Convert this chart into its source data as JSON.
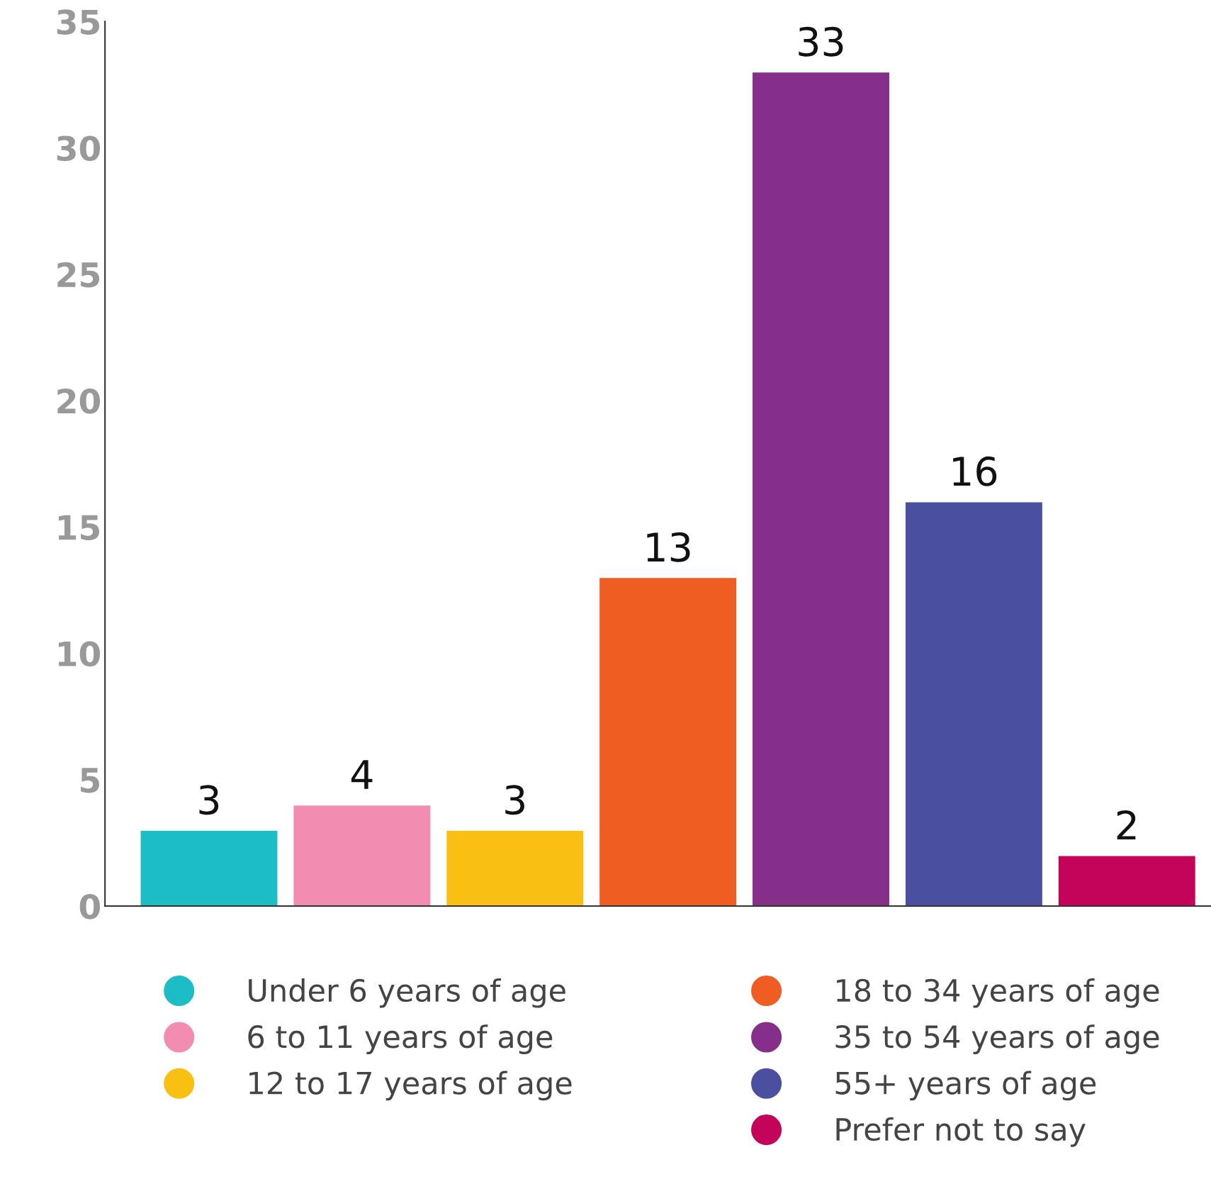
{
  "chart_data": {
    "type": "bar",
    "categories": [
      null,
      null,
      null,
      null,
      null,
      null,
      null
    ],
    "series": [
      {
        "name": "Under 6 years of age",
        "color": "#1dbdc6",
        "values": [
          3,
          null,
          null,
          null,
          null,
          null,
          null
        ]
      },
      {
        "name": "6 to 11 years of age",
        "color": "#f28db1",
        "values": [
          null,
          4,
          null,
          null,
          null,
          null,
          null
        ]
      },
      {
        "name": "12 to 17 years of age",
        "color": "#f9c013",
        "values": [
          null,
          null,
          3,
          null,
          null,
          null,
          null
        ]
      },
      {
        "name": "18 to 34 years of age",
        "color": "#f05d23",
        "values": [
          null,
          null,
          null,
          13,
          null,
          null,
          null
        ]
      },
      {
        "name": "35 to 54 years of age",
        "color": "#852f8a",
        "values": [
          null,
          null,
          null,
          null,
          33,
          null,
          null
        ]
      },
      {
        "name": "55+ years of age",
        "color": "#4a4f9f",
        "values": [
          null,
          null,
          null,
          null,
          null,
          16,
          null
        ]
      },
      {
        "name": "Prefer not to say",
        "color": "#c4035a",
        "values": [
          null,
          null,
          null,
          null,
          null,
          null,
          2
        ]
      }
    ],
    "ylim": [
      0,
      35
    ],
    "yticks": [
      0,
      5,
      10,
      15,
      20,
      25,
      30,
      35
    ],
    "data_labels": true,
    "grid": false,
    "legend": "bottom",
    "marker": "circle",
    "tick_labels": "y"
  }
}
